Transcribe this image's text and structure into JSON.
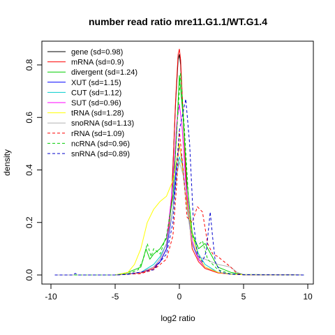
{
  "chart_data": {
    "type": "line",
    "title": "number read ratio mre11.G1.1/WT.G1.4",
    "xlabel": "log2 ratio",
    "ylabel": "density",
    "xlim": [
      -10,
      10
    ],
    "ylim": [
      0,
      0.86
    ],
    "xticks": [
      -10,
      -5,
      0,
      5,
      10
    ],
    "xtick_labels": [
      "-10",
      "-5",
      "0",
      "5",
      "10"
    ],
    "yticks": [
      0.0,
      0.2,
      0.4,
      0.6,
      0.8
    ],
    "ytick_labels": [
      "0.0",
      "0.2",
      "0.4",
      "0.6",
      "0.8"
    ],
    "grid": false,
    "legend_position": "top-left",
    "series": [
      {
        "name": "gene (sd=0.98)",
        "color": "#000000",
        "dash": "solid",
        "x": [
          -9.7,
          -5,
          -4,
          -3,
          -2,
          -1.5,
          -1,
          -0.6,
          -0.3,
          -0.1,
          0,
          0.1,
          0.3,
          0.6,
          1,
          1.5,
          2,
          3,
          4,
          5,
          9.7
        ],
        "y": [
          0,
          0,
          0.005,
          0.01,
          0.03,
          0.06,
          0.12,
          0.3,
          0.65,
          0.82,
          0.84,
          0.8,
          0.6,
          0.3,
          0.12,
          0.06,
          0.03,
          0.01,
          0.004,
          0.001,
          0
        ]
      },
      {
        "name": "mRNA (sd=0.9)",
        "color": "#ff0000",
        "dash": "solid",
        "x": [
          -9.7,
          -5,
          -4,
          -3,
          -2,
          -1.5,
          -1,
          -0.6,
          -0.3,
          -0.1,
          0,
          0.1,
          0.3,
          0.6,
          1,
          1.5,
          2,
          3,
          4,
          5,
          9.7
        ],
        "y": [
          0,
          0,
          0.004,
          0.008,
          0.025,
          0.05,
          0.1,
          0.28,
          0.66,
          0.84,
          0.86,
          0.82,
          0.6,
          0.28,
          0.1,
          0.05,
          0.025,
          0.008,
          0.003,
          0.001,
          0
        ]
      },
      {
        "name": "divergent (sd=1.24)",
        "color": "#00cd00",
        "dash": "solid",
        "x": [
          -9.7,
          -5,
          -4,
          -3,
          -2.6,
          -2.3,
          -2,
          -1.5,
          -1,
          -0.5,
          -0.2,
          0,
          0.3,
          0.6,
          1,
          1.5,
          2,
          3,
          4,
          5,
          9.7
        ],
        "y": [
          0,
          0,
          0.01,
          0.03,
          0.1,
          0.06,
          0.08,
          0.1,
          0.14,
          0.3,
          0.55,
          0.76,
          0.6,
          0.35,
          0.16,
          0.1,
          0.12,
          0.03,
          0.01,
          0.002,
          0
        ]
      },
      {
        "name": "XUT (sd=1.15)",
        "color": "#0000ff",
        "dash": "solid",
        "x": [
          -9.7,
          -5,
          -4,
          -3,
          -2,
          -1.5,
          -1,
          -0.5,
          -0.2,
          0,
          0.2,
          0.5,
          1,
          1.5,
          2,
          3,
          4,
          5,
          9.7
        ],
        "y": [
          0,
          0,
          0.005,
          0.01,
          0.03,
          0.05,
          0.1,
          0.25,
          0.44,
          0.49,
          0.44,
          0.3,
          0.12,
          0.06,
          0.03,
          0.01,
          0.004,
          0.001,
          0
        ]
      },
      {
        "name": "CUT (sd=1.12)",
        "color": "#00cdcd",
        "dash": "solid",
        "x": [
          -9.7,
          -5,
          -4,
          -3,
          -2,
          -1.5,
          -1,
          -0.5,
          -0.2,
          0,
          0.2,
          0.5,
          1,
          1.5,
          2,
          3,
          4,
          5,
          9.7
        ],
        "y": [
          0,
          0,
          0.004,
          0.01,
          0.04,
          0.07,
          0.12,
          0.25,
          0.38,
          0.45,
          0.42,
          0.3,
          0.15,
          0.08,
          0.04,
          0.01,
          0.004,
          0.001,
          0
        ]
      },
      {
        "name": "SUT (sd=0.96)",
        "color": "#ff00ff",
        "dash": "solid",
        "x": [
          -9.7,
          -5,
          -4,
          -3,
          -2,
          -1.5,
          -1,
          -0.5,
          -0.2,
          0,
          0.2,
          0.5,
          1,
          1.5,
          2,
          3,
          4,
          5,
          9.7
        ],
        "y": [
          0,
          0,
          0.004,
          0.01,
          0.03,
          0.06,
          0.12,
          0.35,
          0.58,
          0.65,
          0.57,
          0.35,
          0.13,
          0.06,
          0.03,
          0.01,
          0.003,
          0.001,
          0
        ]
      },
      {
        "name": "tRNA (sd=1.28)",
        "color": "#ffff00",
        "dash": "solid",
        "x": [
          -9.7,
          -5,
          -4,
          -3.5,
          -3,
          -2.5,
          -2,
          -1.5,
          -1,
          -0.5,
          -0.2,
          0,
          0.2,
          0.5,
          1,
          1.5,
          2,
          3,
          4,
          5,
          9.7
        ],
        "y": [
          0,
          0,
          0.01,
          0.04,
          0.1,
          0.2,
          0.25,
          0.28,
          0.3,
          0.36,
          0.44,
          0.5,
          0.42,
          0.3,
          0.15,
          0.07,
          0.03,
          0.01,
          0.003,
          0.001,
          0
        ]
      },
      {
        "name": "snoRNA (sd=1.13)",
        "color": "#b3b3b3",
        "dash": "solid",
        "x": [
          -9.7,
          -5,
          -4,
          -3,
          -2,
          -1.5,
          -1,
          -0.5,
          -0.2,
          0,
          0.3,
          0.6,
          1,
          1.5,
          2,
          2.5,
          3,
          3.5,
          4,
          4.5,
          5,
          9.7
        ],
        "y": [
          0,
          0,
          0.004,
          0.01,
          0.03,
          0.06,
          0.12,
          0.25,
          0.38,
          0.43,
          0.38,
          0.25,
          0.12,
          0.07,
          0.06,
          0.05,
          0.04,
          0.035,
          0.03,
          0.01,
          0.002,
          0
        ]
      },
      {
        "name": "rRNA (sd=1.09)",
        "color": "#ff0000",
        "dash": "dashed",
        "x": [
          -9.7,
          -5,
          -4,
          -3,
          -2,
          -1,
          -0.5,
          -0.2,
          0,
          0.3,
          0.6,
          1,
          1.4,
          1.8,
          2.2,
          2.6,
          3,
          3.5,
          4,
          4.5,
          5,
          9.7
        ],
        "y": [
          0,
          0,
          0.003,
          0.005,
          0.02,
          0.06,
          0.15,
          0.35,
          0.55,
          0.4,
          0.22,
          0.2,
          0.26,
          0.24,
          0.12,
          0.08,
          0.07,
          0.05,
          0.03,
          0.005,
          0.001,
          0
        ]
      },
      {
        "name": "ncRNA (sd=0.96)",
        "color": "#00cd00",
        "dash": "dashed",
        "x": [
          -9.7,
          -5,
          -4,
          -3.2,
          -2.8,
          -2.5,
          -2.2,
          -2,
          -1.5,
          -1,
          -0.5,
          -0.2,
          0.1,
          0.4,
          0.7,
          1,
          1.4,
          1.8,
          2.2,
          3,
          4,
          5,
          9.7
        ],
        "y": [
          0,
          0,
          0.005,
          0.02,
          0.06,
          0.12,
          0.07,
          0.1,
          0.08,
          0.15,
          0.3,
          0.55,
          0.77,
          0.55,
          0.3,
          0.15,
          0.11,
          0.13,
          0.06,
          0.02,
          0.004,
          0.001,
          0
        ]
      },
      {
        "name": "snRNA (sd=0.89)",
        "color": "#0000cd",
        "dash": "dashed",
        "x": [
          -9.7,
          -8.3,
          -8.1,
          -7.9,
          -5,
          -4,
          -2,
          -1,
          -0.5,
          -0.2,
          0,
          0.2,
          0.5,
          0.8,
          1.1,
          1.4,
          1.8,
          2.1,
          2.4,
          2.6,
          2.8,
          3.2,
          4,
          5,
          9.7
        ],
        "y": [
          0,
          0,
          0.006,
          0,
          0,
          0.002,
          0.02,
          0.08,
          0.2,
          0.42,
          0.55,
          0.6,
          0.67,
          0.5,
          0.2,
          0.08,
          0.05,
          0.09,
          0.24,
          0.14,
          0.05,
          0.01,
          0.003,
          0.001,
          0
        ]
      }
    ]
  }
}
